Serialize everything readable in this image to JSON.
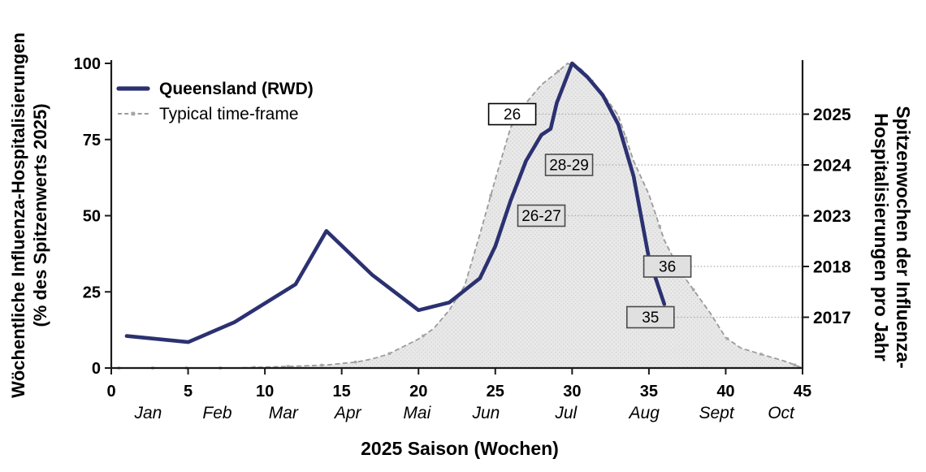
{
  "chart_data": {
    "type": "line",
    "xlabel": "2025 Saison (Wochen)",
    "ylabel_left": [
      "Wöchentliche Influenza-Hospitalisierungen",
      "(% des Spitzenwerts 2025)"
    ],
    "ylabel_right": [
      "Spitzenwochen der Influenza-",
      "Hospitalisierungen pro Jahr"
    ],
    "xlim": [
      0,
      45
    ],
    "ylim": [
      0,
      100
    ],
    "x_ticks": [
      0,
      5,
      10,
      15,
      20,
      25,
      30,
      35,
      40,
      45
    ],
    "y_ticks": [
      0,
      25,
      50,
      75,
      100
    ],
    "grid": false,
    "month_labels": [
      {
        "label": "Jan",
        "week": 2.4
      },
      {
        "label": "Feb",
        "week": 6.9
      },
      {
        "label": "Mar",
        "week": 11.2
      },
      {
        "label": "Apr",
        "week": 15.4
      },
      {
        "label": "Mai",
        "week": 19.9
      },
      {
        "label": "Jun",
        "week": 24.4
      },
      {
        "label": "Jul",
        "week": 29.6
      },
      {
        "label": "Aug",
        "week": 34.7
      },
      {
        "label": "Sept",
        "week": 39.4
      },
      {
        "label": "Oct",
        "week": 43.6
      }
    ],
    "right_axis_years": [
      {
        "label": "2025",
        "percent": 83.33
      },
      {
        "label": "2024",
        "percent": 66.67
      },
      {
        "label": "2023",
        "percent": 50
      },
      {
        "label": "2018",
        "percent": 33.33
      },
      {
        "label": "2017",
        "percent": 16.67
      }
    ],
    "legend": [
      {
        "label": "Queensland (RWD)",
        "style": "solid",
        "bold": true
      },
      {
        "label": "Typical time-frame",
        "style": "dashed",
        "bold": false
      }
    ],
    "series": [
      {
        "name": "Queensland (RWD)",
        "kind": "line",
        "color": "#2b3170",
        "points": [
          [
            1,
            10.5
          ],
          [
            5,
            8.5
          ],
          [
            8,
            15
          ],
          [
            12,
            27.5
          ],
          [
            14,
            45
          ],
          [
            17,
            30.5
          ],
          [
            20,
            19
          ],
          [
            22,
            21.5
          ],
          [
            24,
            29.5
          ],
          [
            25,
            40
          ],
          [
            26,
            55
          ],
          [
            27,
            68
          ],
          [
            28,
            76.5
          ],
          [
            28.6,
            78.5
          ],
          [
            29,
            87
          ],
          [
            30,
            100
          ],
          [
            31,
            95.5
          ],
          [
            32,
            89.5
          ],
          [
            33,
            80
          ],
          [
            34,
            63
          ],
          [
            35,
            36
          ],
          [
            36,
            21
          ]
        ]
      },
      {
        "name": "Typical time-frame",
        "kind": "area",
        "line_color": "#9b9b9b",
        "fill_color": "#e9e9e9",
        "dot_color": "#d6d6d6",
        "points": [
          [
            0,
            0
          ],
          [
            4,
            0
          ],
          [
            8,
            0
          ],
          [
            10,
            0.3
          ],
          [
            12,
            0.6
          ],
          [
            14,
            1
          ],
          [
            15,
            1.5
          ],
          [
            16,
            2
          ],
          [
            17,
            3
          ],
          [
            18,
            4.5
          ],
          [
            19,
            7
          ],
          [
            20,
            9.5
          ],
          [
            21,
            13
          ],
          [
            22,
            19
          ],
          [
            23,
            27
          ],
          [
            24,
            44
          ],
          [
            25,
            62
          ],
          [
            26,
            79
          ],
          [
            27,
            87
          ],
          [
            28,
            93
          ],
          [
            29,
            97
          ],
          [
            29.7,
            100
          ],
          [
            30.5,
            98.5
          ],
          [
            31,
            96
          ],
          [
            32,
            90
          ],
          [
            33,
            83
          ],
          [
            34,
            68
          ],
          [
            35,
            57
          ],
          [
            36,
            42
          ],
          [
            37,
            32
          ],
          [
            38,
            25
          ],
          [
            39,
            18
          ],
          [
            40,
            10
          ],
          [
            41,
            6.5
          ],
          [
            42,
            5
          ],
          [
            43,
            3.5
          ],
          [
            44,
            2
          ],
          [
            45,
            0
          ]
        ]
      }
    ],
    "annotations": [
      {
        "label": "26",
        "week": 26.1,
        "percent": 83.33,
        "year": "2025",
        "box_fill": "#ffffff",
        "box_border": "#000000"
      },
      {
        "label": "28-29",
        "week": 29.8,
        "percent": 66.67,
        "year": "2024",
        "box_fill": "#e0e0e0",
        "box_border": "#4a4a4a"
      },
      {
        "label": "26-27",
        "week": 28.0,
        "percent": 50,
        "year": "2023",
        "box_fill": "#e0e0e0",
        "box_border": "#4a4a4a"
      },
      {
        "label": "36",
        "week": 36.2,
        "percent": 33.33,
        "year": "2018",
        "box_fill": "#e0e0e0",
        "box_border": "#4a4a4a"
      },
      {
        "label": "35",
        "week": 35.1,
        "percent": 16.67,
        "year": "2017",
        "box_fill": "#e0e0e0",
        "box_border": "#4a4a4a"
      }
    ],
    "colors": {
      "queensland_line": "#2b3170",
      "typical_line": "#9b9b9b",
      "typical_fill": "#e9e9e9",
      "connector": "#aeaeae",
      "axis": "#1a1a1a"
    }
  }
}
